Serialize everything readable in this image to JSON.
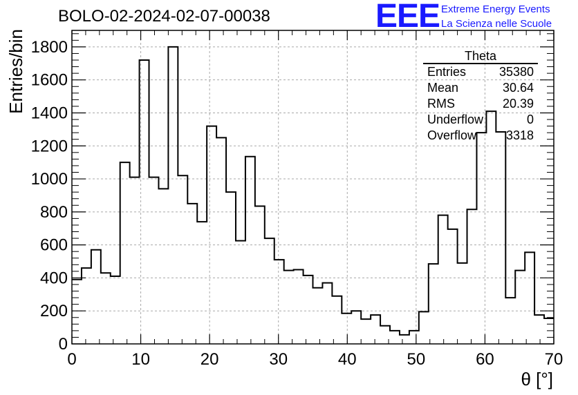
{
  "title": "BOLO-02-2024-02-07-00038",
  "logo": {
    "text": "EEE",
    "line1": "Extreme Energy Events",
    "line2": "La Scienza nelle Scuole",
    "color": "#1a1aff"
  },
  "stats": {
    "name": "Theta",
    "entries_label": "Entries",
    "entries": "35380",
    "mean_label": "Mean",
    "mean": "30.64",
    "rms_label": "RMS",
    "rms": "20.39",
    "underflow_label": "Underflow",
    "underflow": "0",
    "overflow_label": "Overflow",
    "overflow": "3318"
  },
  "chart_data": {
    "type": "histogram",
    "xlabel": "θ [°]",
    "ylabel": "Entries/bin",
    "xlim": [
      0,
      70
    ],
    "ylim": [
      0,
      1900
    ],
    "bin_width": 1.4,
    "grid": true,
    "xticks": [
      0,
      10,
      20,
      30,
      40,
      50,
      60,
      70
    ],
    "yticks": [
      0,
      200,
      400,
      600,
      800,
      1000,
      1200,
      1400,
      1600,
      1800
    ],
    "values": [
      390,
      460,
      570,
      430,
      410,
      1100,
      1010,
      1720,
      1010,
      940,
      1800,
      1020,
      850,
      740,
      1320,
      1250,
      920,
      625,
      1135,
      835,
      640,
      510,
      445,
      450,
      415,
      340,
      370,
      290,
      185,
      200,
      150,
      175,
      110,
      80,
      55,
      80,
      195,
      485,
      780,
      695,
      490,
      815,
      1280,
      1410,
      1285,
      280,
      445,
      555,
      175,
      155
    ]
  }
}
